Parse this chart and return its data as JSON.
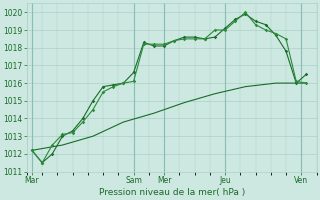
{
  "xlabel": "Pression niveau de la mer( hPa )",
  "bg_color": "#cce8e0",
  "grid_color": "#aad0c8",
  "line_color1": "#1a6b2a",
  "line_color2": "#2a8b3a",
  "ylim": [
    1011,
    1020.5
  ],
  "yticks": [
    1011,
    1012,
    1013,
    1014,
    1015,
    1016,
    1017,
    1018,
    1019,
    1020
  ],
  "xlim": [
    0,
    114
  ],
  "day_labels": [
    "Mar",
    "Sam",
    "Mer",
    "Jeu",
    "Ven"
  ],
  "day_positions": [
    2,
    42,
    54,
    78,
    108
  ],
  "series1": {
    "x": [
      2,
      6,
      10,
      14,
      18,
      22,
      26,
      30,
      34,
      38,
      42,
      46,
      50,
      54,
      58,
      62,
      66,
      70,
      74,
      78,
      82,
      86,
      90,
      94,
      98,
      102,
      106,
      110
    ],
    "y": [
      1012.2,
      1011.5,
      1012.0,
      1013.0,
      1013.3,
      1014.0,
      1015.0,
      1015.8,
      1015.9,
      1016.0,
      1016.6,
      1018.3,
      1018.1,
      1018.1,
      1018.4,
      1018.6,
      1018.6,
      1018.5,
      1018.6,
      1019.1,
      1019.6,
      1019.9,
      1019.5,
      1019.3,
      1018.7,
      1017.8,
      1016.0,
      1016.5
    ]
  },
  "series2": {
    "x": [
      2,
      6,
      10,
      14,
      18,
      22,
      26,
      30,
      34,
      38,
      42,
      46,
      50,
      54,
      58,
      62,
      66,
      70,
      74,
      78,
      82,
      86,
      90,
      94,
      98,
      102,
      106,
      110
    ],
    "y": [
      1012.2,
      1011.5,
      1012.5,
      1013.1,
      1013.2,
      1013.8,
      1014.5,
      1015.5,
      1015.8,
      1016.0,
      1016.1,
      1018.2,
      1018.2,
      1018.2,
      1018.4,
      1018.5,
      1018.5,
      1018.5,
      1019.0,
      1019.0,
      1019.5,
      1020.0,
      1019.3,
      1019.0,
      1018.8,
      1018.5,
      1016.1,
      1016.0
    ]
  },
  "series3": {
    "x": [
      2,
      14,
      26,
      38,
      50,
      62,
      74,
      86,
      98,
      110
    ],
    "y": [
      1012.2,
      1012.5,
      1013.0,
      1013.8,
      1014.3,
      1014.9,
      1015.4,
      1015.8,
      1016.0,
      1016.0
    ]
  }
}
